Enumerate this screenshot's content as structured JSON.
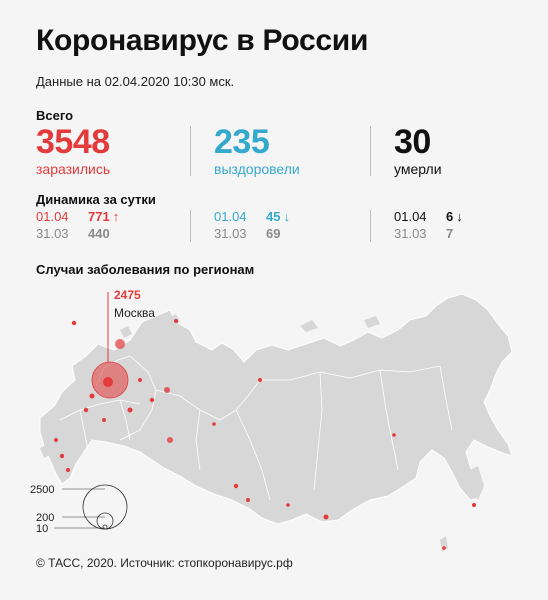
{
  "header": {
    "title": "Коронавирус в России",
    "subtitle": "Данные на 02.04.2020 10:30 мск."
  },
  "totals": {
    "label": "Всего",
    "infected": {
      "value": "3548",
      "caption": "заразились"
    },
    "recovered": {
      "value": "235",
      "caption": "выздоровели"
    },
    "deaths": {
      "value": "30",
      "caption": "умерли"
    }
  },
  "daily": {
    "label": "Динамика за сутки",
    "infected": {
      "today_date": "01.04",
      "today_value": "771",
      "today_arrow": "↑",
      "prev_date": "31.03",
      "prev_value": "440"
    },
    "recovered": {
      "today_date": "01.04",
      "today_value": "45",
      "today_arrow": "↓",
      "prev_date": "31.03",
      "prev_value": "69"
    },
    "deaths": {
      "today_date": "01.04",
      "today_value": "6",
      "today_arrow": "↓",
      "prev_date": "31.03",
      "prev_value": "7"
    }
  },
  "map": {
    "label": "Случаи заболевания по регионам",
    "callout_value": "2475",
    "callout_city": "Москва",
    "legend": [
      "2500",
      "200",
      "10"
    ]
  },
  "footer": "© ТАСС, 2020. Источник: стопкоронавирус.рф",
  "colors": {
    "red": "#e33b3b",
    "blue": "#35a9cd",
    "map_fill": "#d7d7d7",
    "border": "#ffffff",
    "background": "#f5f5f5"
  }
}
